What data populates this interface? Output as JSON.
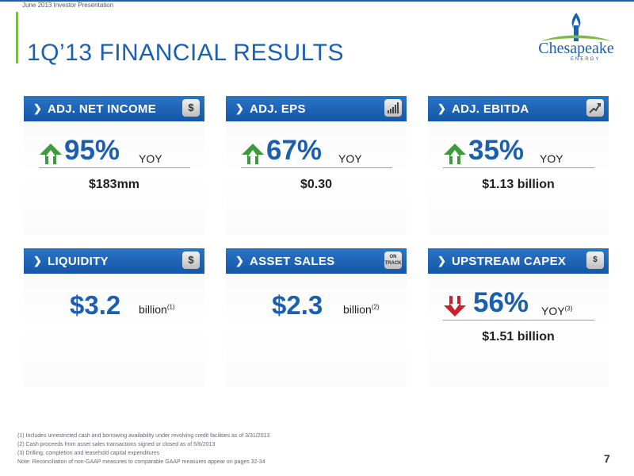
{
  "header": {
    "presentation_label": "June 2013 Investor Presentation",
    "title": "1Q’13 FINANCIAL RESULTS"
  },
  "logo": {
    "word": "Chesapeake",
    "sub": "ENERGY"
  },
  "cards": {
    "net_income": {
      "label": "ADJ. NET INCOME",
      "icon": "$",
      "percent": "95%",
      "yoy": "YOY",
      "direction": "up",
      "value": "$183mm"
    },
    "eps": {
      "label": "ADJ. EPS",
      "percent": "67%",
      "yoy": "YOY",
      "direction": "up",
      "value": "$0.30"
    },
    "ebitda": {
      "label": "ADJ. EBITDA",
      "percent": "35%",
      "yoy": "YOY",
      "direction": "up",
      "value": "$1.13 billion"
    },
    "liquidity": {
      "label": "LIQUIDITY",
      "icon": "$",
      "amount": "$3.2",
      "unit": "billion",
      "footnote": "(1)"
    },
    "asset_sales": {
      "label": "ASSET SALES",
      "icon": "ON TRACK",
      "amount": "$2.3",
      "unit": "billion",
      "footnote": "(2)"
    },
    "capex": {
      "label": "UPSTREAM CAPEX",
      "icon": "$",
      "percent": "56%",
      "yoy": "YOY",
      "footnote": "(3)",
      "direction": "down",
      "value": "$1.51 billion"
    }
  },
  "footnotes": [
    "(1) Includes unrestricted cash and borrowing availability under revolving credit facilities as of 3/31/2013",
    "(2) Cash proceeds from asset sales transactions signed or closed as of 5/6/2013",
    "(3) Drilling, completion and leasehold capital expenditures",
    "Note: Reconciliation of non-GAAP measures to comparable GAAP measures appear on pages 32-34"
  ],
  "page_number": "7",
  "colors": {
    "brand_blue": "#1b5fb0",
    "up_green": "#3d9b3a",
    "down_red": "#c8232c",
    "accent_green": "#7dbb43"
  }
}
